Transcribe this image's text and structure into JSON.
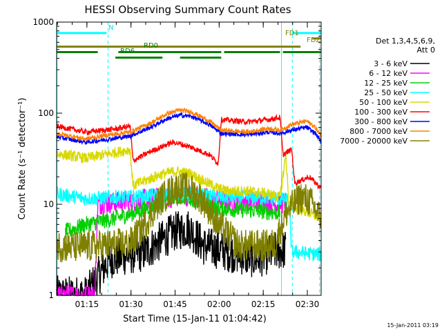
{
  "chart_data": {
    "type": "line",
    "title": "HESSI Observing Summary Count Rates",
    "xlabel": "Start Time (15-Jan-11 01:04:42)",
    "ylabel": "Count Rate (s⁻¹ detector⁻¹)",
    "yscale": "log",
    "ylim": [
      1,
      1000
    ],
    "xlim_minutes_after_start": [
      0,
      90
    ],
    "x_tick_labels": [
      "01:15",
      "01:30",
      "01:45",
      "02:00",
      "02:15",
      "02:30"
    ],
    "x_ticks_minutes": [
      10.3,
      25.3,
      40.3,
      55.3,
      70.3,
      85.3
    ],
    "y_tick_labels": [
      "1",
      "10",
      "100",
      "1000"
    ],
    "y_ticks": [
      1,
      10,
      100,
      1000
    ],
    "legend_title_1": "Det 1,3,4,5,6,9,",
    "legend_title_2": "Att 0",
    "legend_placement": "right",
    "timestamp": "15-Jan-2011 03:19",
    "flag_labels": {
      "n": "N",
      "fd1": "FD1",
      "fdz": "FDZ",
      "rd0": "RD0",
      "rd6": "RD6"
    },
    "series": [
      {
        "name": "3 - 6 keV",
        "color": "#000000",
        "points": [
          [
            0,
            1
          ],
          [
            10,
            1
          ],
          [
            18,
            2.5
          ],
          [
            30,
            3
          ],
          [
            40,
            5
          ],
          [
            45,
            5.5
          ],
          [
            50,
            3.5
          ],
          [
            58,
            3
          ],
          [
            68,
            2.5
          ],
          [
            74,
            3
          ],
          [
            78,
            3.2
          ]
        ]
      },
      {
        "name": "6 - 12 keV",
        "color": "#ff00ff",
        "points": [
          [
            0,
            1
          ],
          [
            13,
            1
          ],
          [
            14,
            10
          ],
          [
            20,
            10.5
          ],
          [
            26,
            11
          ],
          [
            40,
            12
          ],
          [
            45,
            12.5
          ],
          [
            50,
            11.5
          ],
          [
            55,
            11
          ],
          [
            68,
            11
          ],
          [
            75,
            10
          ],
          [
            78,
            10.5
          ]
        ]
      },
      {
        "name": "12 - 25 keV",
        "color": "#00d000",
        "points": [
          [
            3,
            5
          ],
          [
            10,
            6
          ],
          [
            20,
            7
          ],
          [
            26,
            8
          ],
          [
            40,
            12
          ],
          [
            45,
            12
          ],
          [
            50,
            10
          ],
          [
            55,
            9
          ],
          [
            68,
            8.5
          ],
          [
            76,
            8
          ]
        ]
      },
      {
        "name": "25 - 50 keV",
        "color": "#00ffff",
        "points": [
          [
            0,
            13
          ],
          [
            10,
            11.5
          ],
          [
            20,
            12
          ],
          [
            26,
            12
          ],
          [
            40,
            13
          ],
          [
            45,
            13
          ],
          [
            55,
            12
          ],
          [
            68,
            12
          ],
          [
            75,
            11.5
          ],
          [
            79,
            11
          ],
          [
            80,
            3
          ],
          [
            90,
            2.8
          ]
        ]
      },
      {
        "name": "50 - 100 keV",
        "color": "#d8d800",
        "points": [
          [
            0,
            36
          ],
          [
            10,
            32
          ],
          [
            20,
            37
          ],
          [
            25,
            40
          ],
          [
            26,
            16
          ],
          [
            35,
            21
          ],
          [
            40,
            23
          ],
          [
            45,
            22
          ],
          [
            50,
            18
          ],
          [
            55,
            15
          ],
          [
            58,
            14
          ],
          [
            65,
            14
          ],
          [
            72,
            13
          ],
          [
            76,
            12
          ],
          [
            78,
            35
          ],
          [
            79,
            10
          ],
          [
            82,
            9
          ],
          [
            86,
            8
          ],
          [
            90,
            7
          ]
        ]
      },
      {
        "name": "100 - 300 keV",
        "color": "#ff0000",
        "points": [
          [
            0,
            72
          ],
          [
            10,
            62
          ],
          [
            20,
            67
          ],
          [
            25,
            72
          ],
          [
            26,
            30
          ],
          [
            32,
            38
          ],
          [
            38,
            46
          ],
          [
            40,
            48
          ],
          [
            46,
            42
          ],
          [
            52,
            35
          ],
          [
            55,
            28
          ],
          [
            56,
            85
          ],
          [
            65,
            80
          ],
          [
            72,
            85
          ],
          [
            76,
            90
          ],
          [
            77,
            35
          ],
          [
            80,
            40
          ],
          [
            81,
            17
          ],
          [
            86,
            20
          ],
          [
            90,
            15
          ]
        ]
      },
      {
        "name": "300 - 800 keV",
        "color": "#0000ff",
        "points": [
          [
            0,
            55
          ],
          [
            10,
            48
          ],
          [
            18,
            52
          ],
          [
            25,
            56
          ],
          [
            32,
            70
          ],
          [
            38,
            88
          ],
          [
            42,
            95
          ],
          [
            46,
            92
          ],
          [
            52,
            75
          ],
          [
            56,
            60
          ],
          [
            65,
            58
          ],
          [
            72,
            62
          ],
          [
            76,
            60
          ],
          [
            80,
            65
          ],
          [
            85,
            70
          ],
          [
            88,
            60
          ],
          [
            90,
            48
          ]
        ]
      },
      {
        "name": "800 - 7000 keV",
        "color": "#ff8000",
        "points": [
          [
            0,
            60
          ],
          [
            10,
            52
          ],
          [
            18,
            58
          ],
          [
            25,
            62
          ],
          [
            32,
            78
          ],
          [
            38,
            100
          ],
          [
            42,
            108
          ],
          [
            46,
            103
          ],
          [
            52,
            82
          ],
          [
            56,
            65
          ],
          [
            65,
            62
          ],
          [
            72,
            68
          ],
          [
            76,
            65
          ],
          [
            80,
            75
          ],
          [
            85,
            82
          ],
          [
            88,
            70
          ],
          [
            90,
            56
          ]
        ]
      },
      {
        "name": "7000 - 20000 keV",
        "color": "#808000",
        "points": [
          [
            0,
            3.5
          ],
          [
            8,
            3.4
          ],
          [
            15,
            3.5
          ],
          [
            25,
            3.7
          ],
          [
            30,
            6
          ],
          [
            35,
            11
          ],
          [
            40,
            15
          ],
          [
            45,
            15
          ],
          [
            50,
            11
          ],
          [
            55,
            6
          ],
          [
            62,
            3.5
          ],
          [
            70,
            3.5
          ],
          [
            74,
            3.6
          ],
          [
            78,
            8
          ],
          [
            83,
            12
          ],
          [
            86,
            11
          ],
          [
            90,
            7
          ]
        ]
      }
    ],
    "flags": [
      {
        "label": "N",
        "color": "#00ffff",
        "y_frac": 0.04,
        "segments": [
          [
            0,
            17
          ]
        ]
      },
      {
        "label": "FD1",
        "color": "#00ffff",
        "y_frac": 0.04,
        "segments": [
          [
            80,
            90
          ]
        ]
      },
      {
        "label": "FD1",
        "color": "#808000",
        "y_frac": 0.06,
        "segments": [
          [
            87,
            90
          ]
        ]
      },
      {
        "label": "FDZ",
        "color": "#808000",
        "y_frac": 0.09,
        "segments": [
          [
            0,
            83
          ]
        ]
      },
      {
        "label": "RD0",
        "color": "#008000",
        "y_frac": 0.11,
        "segments": [
          [
            0,
            14
          ],
          [
            21,
            56
          ],
          [
            57,
            76
          ],
          [
            77,
            90
          ]
        ]
      },
      {
        "label": "RD6",
        "color": "#008000",
        "y_frac": 0.13,
        "segments": [
          [
            20,
            36
          ],
          [
            42,
            56
          ]
        ]
      }
    ],
    "vertical_markers": [
      {
        "x": 0.1,
        "color": "#00ffff",
        "style": "solid"
      },
      {
        "x": 17.5,
        "color": "#00ffff",
        "style": "dashed"
      },
      {
        "x": 76.5,
        "color": "#00ffff",
        "style": "solid"
      },
      {
        "x": 80.2,
        "color": "#00ffff",
        "style": "dashed"
      },
      {
        "x": 89.5,
        "color": "#00ffff",
        "style": "dashed"
      }
    ]
  }
}
